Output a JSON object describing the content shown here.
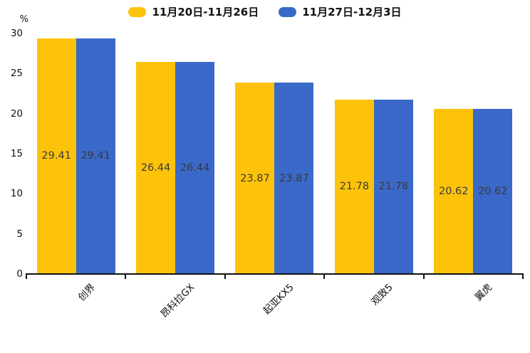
{
  "chart_data": {
    "type": "bar",
    "title": "",
    "categories": [
      "创界",
      "昂科拉GX",
      "起亚KX5",
      "观致5",
      "翼虎"
    ],
    "series": [
      {
        "name": "11月20日-11月26日",
        "color": "#FDC30B",
        "values": [
          29.41,
          26.44,
          23.87,
          21.78,
          20.62
        ]
      },
      {
        "name": "11月27日-12月3日",
        "color": "#3A69CA",
        "values": [
          29.41,
          26.44,
          23.87,
          21.78,
          20.62
        ]
      }
    ],
    "ylabel": "%",
    "ylim": [
      0,
      30
    ],
    "yticks": [
      0,
      5,
      10,
      15,
      20,
      25,
      30
    ],
    "grid": false,
    "legend_position": "top",
    "bar_value_labels_shown": true,
    "value_label_color": "#3a3a3a",
    "axis_color": "#111111",
    "background_color": "#ffffff",
    "category_label_rotation_deg": 45
  }
}
